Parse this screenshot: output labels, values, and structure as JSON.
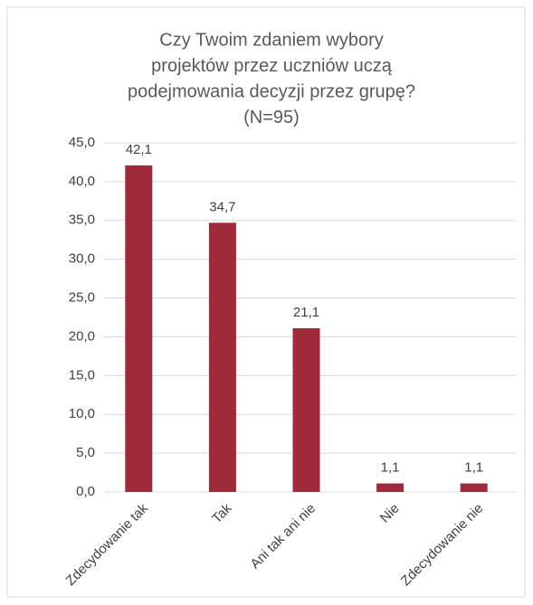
{
  "chart_data": {
    "type": "bar",
    "title": [
      "Czy Twoim zdaniem wybory",
      "projektów przez uczniów uczą",
      "podejmowania decyzji przez grupę?",
      "(N=95)"
    ],
    "categories": [
      "Zdecydowanie tak",
      "Tak",
      "Ani tak ani nie",
      "Nie",
      "Zdecydowanie nie"
    ],
    "values": [
      42.1,
      34.7,
      21.1,
      1.1,
      1.1
    ],
    "value_labels": [
      "42,1",
      "34,7",
      "21,1",
      "1,1",
      "1,1"
    ],
    "color": "#9e2a3a",
    "ylim": [
      0,
      45
    ],
    "yticks": [
      {
        "value": 0,
        "label": "0,0"
      },
      {
        "value": 5,
        "label": "5,0"
      },
      {
        "value": 10,
        "label": "10,0"
      },
      {
        "value": 15,
        "label": "15,0"
      },
      {
        "value": 20,
        "label": "20,0"
      },
      {
        "value": 25,
        "label": "25,0"
      },
      {
        "value": 30,
        "label": "30,0"
      },
      {
        "value": 35,
        "label": "35,0"
      },
      {
        "value": 40,
        "label": "40,0"
      },
      {
        "value": 45,
        "label": "45,0"
      }
    ],
    "grid": true
  }
}
